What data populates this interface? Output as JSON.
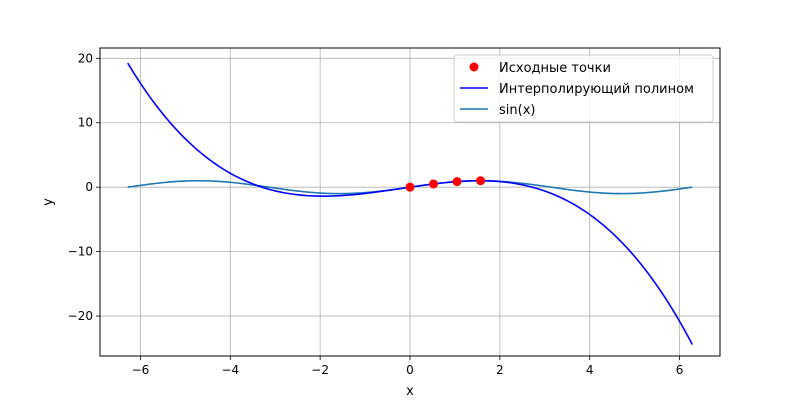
{
  "chart_data": {
    "type": "line",
    "title": "",
    "xlabel": "x",
    "ylabel": "y",
    "xlim": [
      -6.9,
      6.9
    ],
    "ylim": [
      -26.2,
      21.6
    ],
    "grid": true,
    "legend_position": "top-right",
    "x_ticks": [
      -6,
      -4,
      -2,
      0,
      2,
      4,
      6
    ],
    "x_tick_labels": [
      "−6",
      "−4",
      "−2",
      "0",
      "2",
      "4",
      "6"
    ],
    "y_ticks": [
      -20,
      -10,
      0,
      10,
      20
    ],
    "y_tick_labels": [
      "−20",
      "−10",
      "0",
      "10",
      "20"
    ],
    "series": [
      {
        "name": "Исходные точки",
        "kind": "scatter",
        "color": "#ff0000",
        "points": [
          [
            0.0,
            0.0
          ],
          [
            0.5236,
            0.5
          ],
          [
            1.0472,
            0.866
          ],
          [
            1.5708,
            1.0
          ]
        ]
      },
      {
        "name": "Интерполирующий полином",
        "kind": "line",
        "color": "#0000ff",
        "x_range": [
          -6.2832,
          6.2832
        ],
        "polynomial_coefficients": [
          0,
          1.02043,
          -0.06515,
          -0.11387
        ]
      },
      {
        "name": "sin(x)",
        "kind": "line",
        "color": "#1f77b4",
        "function": "sin",
        "x_range": [
          -6.2832,
          6.2832
        ]
      }
    ]
  }
}
